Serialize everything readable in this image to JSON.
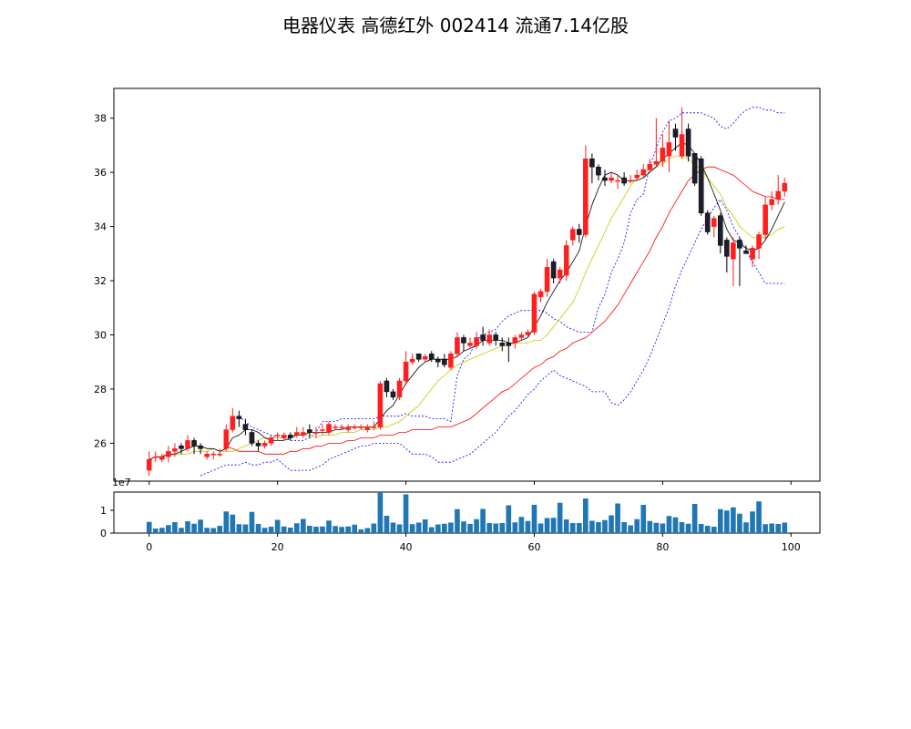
{
  "chart_data": {
    "type": "candlestick",
    "title": "电器仪表 高德红外 002414 流通7.14亿股",
    "price_ylim": [
      24.6,
      39.1
    ],
    "price_yticks": [
      26,
      28,
      30,
      32,
      34,
      36,
      38
    ],
    "x_ticks": [
      0,
      20,
      40,
      60,
      80,
      100
    ],
    "xlim": [
      -5.5,
      104.5
    ],
    "volume_ylim": [
      0,
      18000000
    ],
    "volume_yticks": [
      0,
      1
    ],
    "volume_scale_label": "1e7",
    "colors": {
      "up": "#ff1f1f",
      "down": "#000000",
      "ma5": "#000000",
      "ma10": "#c8c800",
      "ma20": "#ff0000",
      "boll": "#0000ff",
      "volume": "#1f77b4"
    },
    "close": [
      25.4,
      25.5,
      25.5,
      25.7,
      25.8,
      25.8,
      26.1,
      25.9,
      25.8,
      25.6,
      25.6,
      25.6,
      26.5,
      27.0,
      26.9,
      26.5,
      26.0,
      25.9,
      26.0,
      26.2,
      26.3,
      26.3,
      26.2,
      26.4,
      26.4,
      26.4,
      26.4,
      26.5,
      26.7,
      26.6,
      26.6,
      26.6,
      26.6,
      26.6,
      26.6,
      26.6,
      28.2,
      27.9,
      27.7,
      28.3,
      29.0,
      29.1,
      29.1,
      29.2,
      29.1,
      29.0,
      28.9,
      29.3,
      29.9,
      29.7,
      29.7,
      29.9,
      29.8,
      30.0,
      29.8,
      29.6,
      29.6,
      29.9,
      30.0,
      30.1,
      31.5,
      31.6,
      32.5,
      32.1,
      32.4,
      33.3,
      33.9,
      33.7,
      36.5,
      36.2,
      35.9,
      35.7,
      35.8,
      35.7,
      35.6,
      35.7,
      35.9,
      36.1,
      36.3,
      36.4,
      36.9,
      37.1,
      37.3,
      37.4,
      36.6,
      35.6,
      34.5,
      33.8,
      34.3,
      33.3,
      32.9,
      33.4,
      33.2,
      33.0,
      33.2,
      33.7,
      34.8,
      35.0,
      35.3,
      35.6
    ],
    "open": [
      25.0,
      25.5,
      25.4,
      25.5,
      25.7,
      25.9,
      25.8,
      26.1,
      25.9,
      25.5,
      25.6,
      25.6,
      25.8,
      26.5,
      27.0,
      26.7,
      26.4,
      26.0,
      25.9,
      26.0,
      26.3,
      26.2,
      26.3,
      26.3,
      26.3,
      26.5,
      26.4,
      26.5,
      26.4,
      26.6,
      26.6,
      26.5,
      26.6,
      26.6,
      26.5,
      26.6,
      26.6,
      28.3,
      27.9,
      27.7,
      28.3,
      29.0,
      29.3,
      29.1,
      29.3,
      29.1,
      29.1,
      28.8,
      29.3,
      29.9,
      29.6,
      29.6,
      30.0,
      29.7,
      30.0,
      29.7,
      29.7,
      29.7,
      29.9,
      30.0,
      30.1,
      31.4,
      31.6,
      32.7,
      32.1,
      32.2,
      33.5,
      33.9,
      33.7,
      36.5,
      36.2,
      35.8,
      35.7,
      35.7,
      35.8,
      35.7,
      35.8,
      35.9,
      36.1,
      36.3,
      36.4,
      36.6,
      37.6,
      36.6,
      37.6,
      36.7,
      36.5,
      34.5,
      34.0,
      34.4,
      33.5,
      32.8,
      33.5,
      33.1,
      32.8,
      33.2,
      33.7,
      34.8,
      35.0,
      35.3
    ],
    "high": [
      25.7,
      25.7,
      25.6,
      25.9,
      26.0,
      26.0,
      26.3,
      26.2,
      26.0,
      25.7,
      25.7,
      25.8,
      26.7,
      27.3,
      27.2,
      26.9,
      26.5,
      26.1,
      26.1,
      26.3,
      26.4,
      26.4,
      26.4,
      26.6,
      26.6,
      26.7,
      26.6,
      26.7,
      26.8,
      26.7,
      26.7,
      26.7,
      26.7,
      26.7,
      26.7,
      26.8,
      28.3,
      28.4,
      28.0,
      28.4,
      29.4,
      29.3,
      29.3,
      29.3,
      29.4,
      29.2,
      29.3,
      29.4,
      30.1,
      30.0,
      29.9,
      30.1,
      30.3,
      30.2,
      30.1,
      29.9,
      29.9,
      30.0,
      30.1,
      30.2,
      31.6,
      31.7,
      32.8,
      32.8,
      32.5,
      33.5,
      34.0,
      34.1,
      37.0,
      36.7,
      36.3,
      36.1,
      36.0,
      35.9,
      36.0,
      35.9,
      36.1,
      36.3,
      36.5,
      38.0,
      37.4,
      37.9,
      37.8,
      38.4,
      37.8,
      36.7,
      36.6,
      34.6,
      34.4,
      34.5,
      33.6,
      33.6,
      33.6,
      33.3,
      33.3,
      33.8,
      35.1,
      35.3,
      35.9,
      35.8
    ],
    "low": [
      24.8,
      25.3,
      25.3,
      25.3,
      25.5,
      25.6,
      25.7,
      25.6,
      25.6,
      25.4,
      25.4,
      25.5,
      25.7,
      26.4,
      26.6,
      26.3,
      25.9,
      25.7,
      25.8,
      25.9,
      26.1,
      26.1,
      26.1,
      26.2,
      26.2,
      26.2,
      26.2,
      26.3,
      26.3,
      26.5,
      26.5,
      26.4,
      26.5,
      26.5,
      26.4,
      26.5,
      26.5,
      27.7,
      27.6,
      27.6,
      28.2,
      28.9,
      29.0,
      29.0,
      29.0,
      28.8,
      28.8,
      28.7,
      29.2,
      29.4,
      29.5,
      29.5,
      29.6,
      29.6,
      29.6,
      29.4,
      29.0,
      29.5,
      29.8,
      29.9,
      30.0,
      31.2,
      31.4,
      31.9,
      31.9,
      32.0,
      33.3,
      33.4,
      33.6,
      35.6,
      35.7,
      35.5,
      35.6,
      35.4,
      35.5,
      35.6,
      35.7,
      35.8,
      36.0,
      36.2,
      36.2,
      36.0,
      36.8,
      36.5,
      36.4,
      35.5,
      34.4,
      33.7,
      33.6,
      33.0,
      32.3,
      31.8,
      31.8,
      33.0,
      32.5,
      32.8,
      33.5,
      34.6,
      34.8,
      35.1
    ],
    "ma5": [
      25.4,
      25.5,
      25.5,
      25.6,
      25.6,
      25.7,
      25.8,
      25.9,
      25.9,
      25.8,
      25.8,
      25.7,
      25.8,
      26.2,
      26.3,
      26.5,
      26.5,
      26.4,
      26.2,
      26.1,
      26.1,
      26.1,
      26.2,
      26.3,
      26.3,
      26.4,
      26.4,
      26.4,
      26.4,
      26.5,
      26.5,
      26.6,
      26.6,
      26.6,
      26.6,
      26.6,
      26.9,
      27.2,
      27.4,
      27.8,
      28.2,
      28.5,
      28.8,
      29.0,
      29.1,
      29.1,
      29.1,
      29.1,
      29.2,
      29.4,
      29.5,
      29.6,
      29.8,
      29.8,
      29.8,
      29.8,
      29.7,
      29.7,
      29.8,
      29.9,
      30.3,
      30.7,
      31.2,
      31.6,
      32.0,
      32.3,
      32.7,
      33.1,
      34.0,
      34.8,
      35.4,
      35.9,
      36.0,
      35.9,
      35.7,
      35.7,
      35.7,
      35.8,
      36.0,
      36.2,
      36.5,
      36.7,
      36.9,
      37.1,
      37.0,
      36.7,
      36.3,
      35.8,
      35.2,
      34.6,
      33.9,
      33.5,
      33.4,
      33.2,
      33.1,
      33.2,
      33.5,
      33.9,
      34.4,
      34.9
    ],
    "ma10": [
      25.6,
      25.5,
      25.6,
      25.6,
      25.6,
      25.7,
      25.7,
      25.7,
      25.8,
      25.7,
      25.7,
      25.7,
      25.8,
      25.9,
      26.0,
      26.1,
      26.2,
      26.2,
      26.2,
      26.2,
      26.3,
      26.3,
      26.3,
      26.3,
      26.2,
      26.3,
      26.3,
      26.3,
      26.4,
      26.4,
      26.4,
      26.5,
      26.5,
      26.5,
      26.6,
      26.6,
      26.7,
      26.8,
      27.0,
      27.2,
      27.4,
      27.7,
      28.0,
      28.3,
      28.5,
      28.7,
      28.9,
      29.0,
      29.1,
      29.2,
      29.3,
      29.4,
      29.5,
      29.6,
      29.6,
      29.7,
      29.7,
      29.7,
      29.8,
      29.8,
      30.0,
      30.3,
      30.6,
      30.9,
      31.2,
      31.7,
      32.3,
      32.8,
      33.3,
      33.8,
      34.3,
      34.7,
      35.1,
      35.5,
      35.8,
      36.0,
      36.1,
      36.2,
      36.3,
      36.5,
      36.6,
      36.6,
      36.5,
      36.3,
      36.1,
      35.8,
      35.5,
      35.2,
      34.7,
      34.4,
      34.0,
      33.8,
      33.6,
      33.6,
      33.6,
      33.7,
      33.9,
      34.0
    ],
    "ma20": [
      25.9,
      25.8,
      25.7,
      25.7,
      25.7,
      25.7,
      25.6,
      25.6,
      25.6,
      25.6,
      25.7,
      25.7,
      25.8,
      25.8,
      25.9,
      25.9,
      26.0,
      26.0,
      26.0,
      26.1,
      26.1,
      26.2,
      26.2,
      26.2,
      26.3,
      26.3,
      26.3,
      26.4,
      26.4,
      26.5,
      26.5,
      26.5,
      26.5,
      26.6,
      26.6,
      26.6,
      26.7,
      26.8,
      26.9,
      27.1,
      27.3,
      27.5,
      27.7,
      27.9,
      28.0,
      28.2,
      28.4,
      28.6,
      28.8,
      28.9,
      29.1,
      29.2,
      29.4,
      29.5,
      29.7,
      29.8,
      29.9,
      30.1,
      30.3,
      30.5,
      30.8,
      31.1,
      31.5,
      31.9,
      32.3,
      32.7,
      33.1,
      33.6,
      34.0,
      34.5,
      34.9,
      35.3,
      35.7,
      35.9,
      36.1,
      36.2,
      36.2,
      36.1,
      36.0,
      35.9,
      35.7,
      35.5,
      35.3,
      35.2,
      35.1,
      35.1,
      35.0,
      35.0
    ],
    "boll_upper": [
      27.0,
      26.8,
      26.6,
      26.5,
      26.4,
      26.3,
      26.2,
      26.2,
      26.1,
      26.1,
      26.1,
      26.2,
      26.4,
      26.8,
      26.8,
      26.8,
      26.9,
      26.9,
      26.9,
      26.9,
      26.9,
      26.9,
      27.0,
      27.0,
      27.0,
      27.0,
      27.1,
      27.0,
      27.0,
      27.0,
      26.9,
      26.9,
      26.9,
      26.8,
      28.5,
      29.1,
      29.3,
      29.8,
      30.0,
      30.1,
      30.2,
      30.5,
      30.7,
      30.8,
      30.9,
      30.9,
      30.9,
      30.9,
      30.8,
      30.6,
      30.5,
      30.3,
      30.2,
      30.1,
      30.1,
      30.1,
      31.0,
      31.5,
      32.3,
      32.8,
      33.4,
      34.5,
      35.0,
      35.2,
      36.2,
      36.9,
      37.5,
      37.9,
      38.0,
      38.2,
      38.2,
      38.2,
      38.2,
      38.1,
      38.0,
      37.7,
      37.6,
      37.8,
      38.1,
      38.3,
      38.4,
      38.4,
      38.3,
      38.3,
      38.2,
      38.2
    ],
    "boll_lower": [
      24.8,
      24.9,
      25.0,
      25.1,
      25.2,
      25.2,
      25.2,
      25.3,
      25.2,
      25.2,
      25.3,
      25.3,
      25.4,
      25.2,
      25.0,
      25.0,
      25.0,
      25.0,
      25.1,
      25.2,
      25.4,
      25.5,
      25.6,
      25.7,
      25.8,
      25.9,
      25.9,
      26.0,
      26.0,
      26.0,
      26.0,
      26.0,
      25.8,
      25.6,
      25.6,
      25.6,
      25.5,
      25.3,
      25.3,
      25.3,
      25.4,
      25.5,
      25.6,
      25.8,
      26.0,
      26.2,
      26.4,
      26.7,
      27.0,
      27.2,
      27.5,
      27.8,
      28.0,
      28.3,
      28.5,
      28.7,
      28.5,
      28.4,
      28.3,
      28.2,
      28.1,
      27.9,
      27.9,
      27.9,
      27.5,
      27.4,
      27.6,
      27.9,
      28.3,
      28.7,
      29.2,
      29.8,
      30.4,
      31.0,
      31.8,
      32.4,
      32.9,
      33.4,
      33.9,
      34.3,
      34.7,
      35.0,
      34.6,
      34.0,
      33.6,
      33.1,
      32.7,
      32.3,
      31.9,
      31.9,
      31.9,
      31.9
    ],
    "volume": [
      4.9,
      2.0,
      2.3,
      3.5,
      4.8,
      2.3,
      5.2,
      4.1,
      5.9,
      2.3,
      2.2,
      3.2,
      9.5,
      8.1,
      3.9,
      3.8,
      9.3,
      4.0,
      2.3,
      2.8,
      5.8,
      2.9,
      2.4,
      4.3,
      6.2,
      3.2,
      2.8,
      2.9,
      5.5,
      3.1,
      2.7,
      2.9,
      3.7,
      1.6,
      2.2,
      4.2,
      18.0,
      7.6,
      4.6,
      3.8,
      17.0,
      3.9,
      4.6,
      6.0,
      2.6,
      3.8,
      4.1,
      4.6,
      10.5,
      5.1,
      4.0,
      6.1,
      10.6,
      4.4,
      4.2,
      4.4,
      12.2,
      4.7,
      7.1,
      5.3,
      12.4,
      4.2,
      6.6,
      6.7,
      13.3,
      6.0,
      4.4,
      4.4,
      15.2,
      5.4,
      4.8,
      5.7,
      7.8,
      13.0,
      4.8,
      3.4,
      6.1,
      12.4,
      5.3,
      4.5,
      4.2,
      7.5,
      6.9,
      4.8,
      4.1,
      12.8,
      4.0,
      3.2,
      2.8,
      10.5,
      9.9,
      11.3,
      8.5,
      4.7,
      9.5,
      13.9,
      3.9,
      4.2,
      4.0,
      4.6
    ]
  }
}
